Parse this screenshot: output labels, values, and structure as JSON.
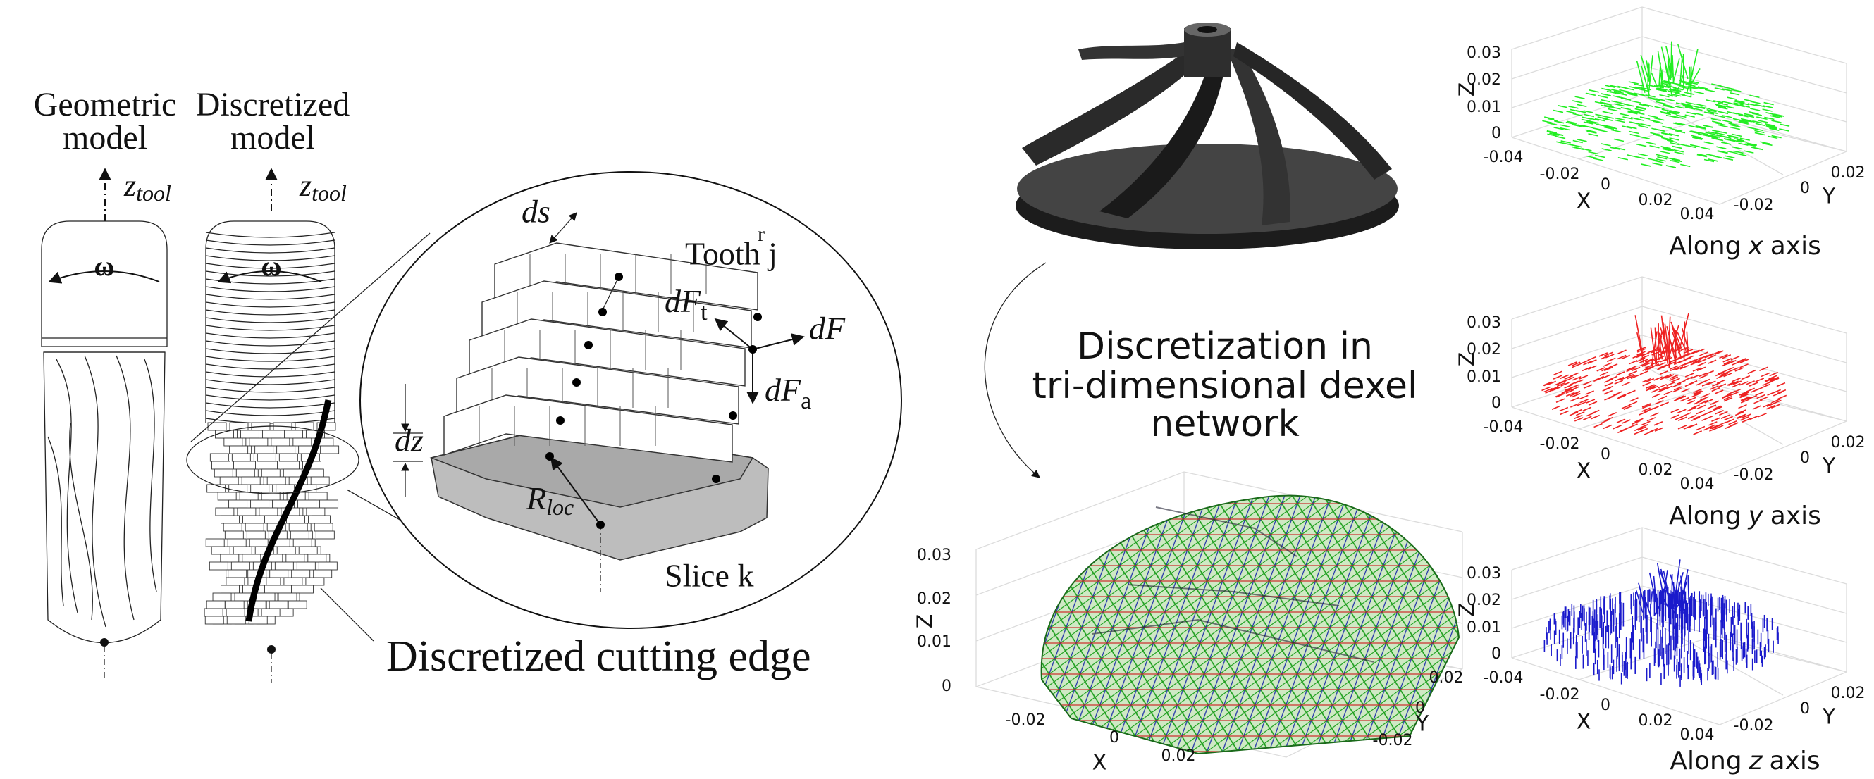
{
  "tool_models": {
    "geometric": {
      "title_lines": [
        "Geometric",
        "model"
      ],
      "axis_symbol": "z",
      "axis_subscript": "tool",
      "rotation": "ω"
    },
    "discretized": {
      "title_lines": [
        "Discretized",
        "model"
      ],
      "axis_symbol": "z",
      "axis_subscript": "tool",
      "rotation": "ω"
    }
  },
  "zoom": {
    "ds": "ds",
    "tooth": "Tooth j",
    "tooth_mark": "r",
    "dF_t": {
      "symbol": "dF",
      "subscript": "t"
    },
    "dF": "dF",
    "dF_a": {
      "symbol": "dF",
      "subscript": "a"
    },
    "dz": "dz",
    "R_loc": {
      "symbol": "R",
      "subscript": "loc"
    },
    "slice": "Slice k"
  },
  "cutting_edge_label": "Discretized cutting edge",
  "network_title": [
    "Discretization in",
    "tri-dimensional dexel",
    "network"
  ],
  "dexel_plot": {
    "x_label": "X",
    "y_label": "Y",
    "z_label": "Z",
    "z_ticks": [
      "0.03",
      "0.02",
      "0.01",
      "0"
    ],
    "x_ticks": [
      "-0.02",
      "0",
      "0.02"
    ],
    "y_ticks": [
      "0.02",
      "0",
      "-0.02"
    ]
  },
  "direction_plots": [
    {
      "caption": [
        "Along",
        "x",
        "axis"
      ],
      "color": "#22ee22",
      "x_label": "X",
      "y_label": "Y",
      "z_label": "Z",
      "z_ticks": [
        "0.03",
        "0.02",
        "0.01",
        "0"
      ],
      "x_ticks": [
        "-0.04",
        "-0.02",
        "0",
        "0.02",
        "0.04"
      ],
      "y_ticks": [
        "0.02",
        "0",
        "-0.02"
      ]
    },
    {
      "caption": [
        "Along",
        "y",
        "axis"
      ],
      "color": "#ee2222",
      "x_label": "X",
      "y_label": "Y",
      "z_label": "Z",
      "z_ticks": [
        "0.03",
        "0.02",
        "0.01",
        "0"
      ],
      "x_ticks": [
        "-0.04",
        "-0.02",
        "0",
        "0.02",
        "0.04"
      ],
      "y_ticks": [
        "0.02",
        "0",
        "-0.02"
      ]
    },
    {
      "caption": [
        "Along",
        "z",
        "axis"
      ],
      "color": "#1a1acc",
      "x_label": "X",
      "y_label": "Y",
      "z_label": "Z",
      "z_ticks": [
        "0.03",
        "0.02",
        "0.01",
        "0"
      ],
      "x_ticks": [
        "-0.04",
        "-0.02",
        "0",
        "0.02",
        "0.04"
      ],
      "y_ticks": [
        "0.02",
        "0",
        "-0.02"
      ]
    }
  ]
}
